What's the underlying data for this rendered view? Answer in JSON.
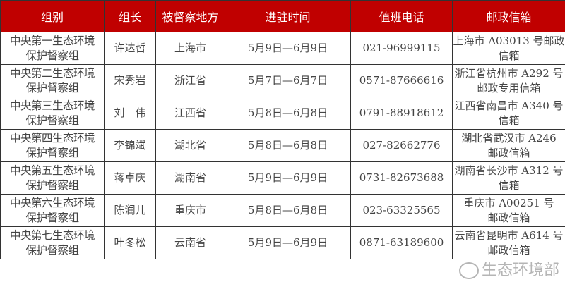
{
  "headers": [
    "组别",
    "组长",
    "被督察地方",
    "进驻时间",
    "值班电话",
    "邮政信箱"
  ],
  "rows": [
    {
      "group": [
        "中央第一生态环境",
        "保护督察组"
      ],
      "leader": "许达哲",
      "place": "上海市",
      "time": "5月9日—6月9日",
      "phone": "021-96999115",
      "mailbox": [
        "上海市 A03013 号邮政",
        "信箱"
      ]
    },
    {
      "group": [
        "中央第二生态环境",
        "保护督察组"
      ],
      "leader": "宋秀岩",
      "place": "浙江省",
      "time": "5月7日—6月7日",
      "phone": "0571-87666616",
      "mailbox": [
        "浙江省杭州市 A292 号",
        "邮政专用信箱"
      ]
    },
    {
      "group": [
        "中央第三生态环境",
        "保护督察组"
      ],
      "leader": "刘　伟",
      "place": "江西省",
      "time": "5月8日—6月8日",
      "phone": "0791-88918612",
      "mailbox": [
        "江西省南昌市 A340 号",
        "信箱"
      ]
    },
    {
      "group": [
        "中央第四生态环境",
        "保护督察组"
      ],
      "leader": "李锦斌",
      "place": "湖北省",
      "time": "5月8日—6月8日",
      "phone": "027-82662776",
      "mailbox": [
        "湖北省武汉市 A246",
        "邮政信箱"
      ]
    },
    {
      "group": [
        "中央第五生态环境",
        "保护督察组"
      ],
      "leader": "蒋卓庆",
      "place": "湖南省",
      "time": "5月9日—6月9日",
      "phone": "0731-82673688",
      "mailbox": [
        "湖南省长沙市 A312 号",
        "信箱"
      ]
    },
    {
      "group": [
        "中央第六生态环境",
        "保护督察组"
      ],
      "leader": "陈润儿",
      "place": "重庆市",
      "time": "5月8日—6月8日",
      "phone": "023-63325565",
      "mailbox": [
        "重庆市 A00251 号",
        "邮政信箱"
      ]
    },
    {
      "group": [
        "中央第七生态环境",
        "保护督察组"
      ],
      "leader": "叶冬松",
      "place": "云南省",
      "time": "5月9日—6月9日",
      "phone": "0871-63189600",
      "mailbox": [
        "云南省昆明市 A614 号",
        "邮政信箱"
      ]
    }
  ],
  "watermark": "生态环境部",
  "colors": {
    "header_bg": "#c00000",
    "header_text": "#ffffff"
  }
}
